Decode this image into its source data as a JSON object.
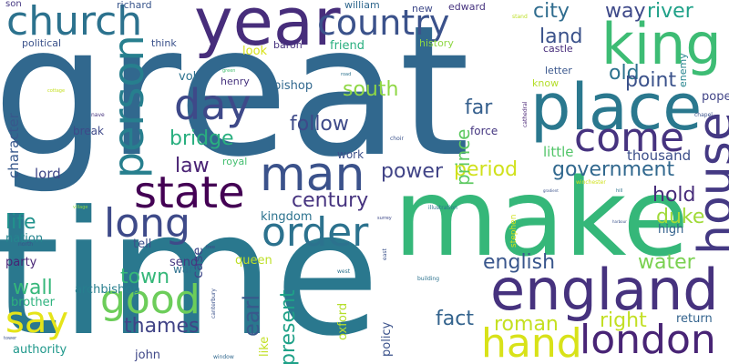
{
  "words": [
    {
      "text": "great",
      "color": "#31688e"
    },
    {
      "text": "time",
      "color": "#2a788e"
    },
    {
      "text": "make",
      "color": "#35b779"
    },
    {
      "text": "england",
      "color": "#46327e"
    },
    {
      "text": "year",
      "color": "#472d7b"
    },
    {
      "text": "king",
      "color": "#3dbc74"
    },
    {
      "text": "church",
      "color": "#2c728e"
    },
    {
      "text": "country",
      "color": "#3b528b"
    },
    {
      "text": "place",
      "color": "#2a788e"
    },
    {
      "text": "house",
      "color": "#443983"
    },
    {
      "text": "man",
      "color": "#3b528b"
    },
    {
      "text": "day",
      "color": "#3e4989"
    },
    {
      "text": "come",
      "color": "#46337f"
    },
    {
      "text": "person",
      "color": "#277f8e"
    },
    {
      "text": "state",
      "color": "#440154"
    },
    {
      "text": "long",
      "color": "#3e4a89"
    },
    {
      "text": "order",
      "color": "#2c728e"
    },
    {
      "text": "good",
      "color": "#6ccd5a"
    },
    {
      "text": "say",
      "color": "#e5e419"
    },
    {
      "text": "hand",
      "color": "#d8e219"
    },
    {
      "text": "london",
      "color": "#482475"
    },
    {
      "text": "city",
      "color": "#2f6c8e"
    },
    {
      "text": "way",
      "color": "#3e4989"
    },
    {
      "text": "river",
      "color": "#1fa188"
    },
    {
      "text": "land",
      "color": "#3b528b"
    },
    {
      "text": "old",
      "color": "#2c728e"
    },
    {
      "text": "point",
      "color": "#3b528b"
    },
    {
      "text": "far",
      "color": "#355f8d"
    },
    {
      "text": "south",
      "color": "#8fd744"
    },
    {
      "text": "follow",
      "color": "#3e4a89"
    },
    {
      "text": "bridge",
      "color": "#29af7f"
    },
    {
      "text": "law",
      "color": "#482173"
    },
    {
      "text": "power",
      "color": "#414487"
    },
    {
      "text": "government",
      "color": "#31688e"
    },
    {
      "text": "period",
      "color": "#d0e11c"
    },
    {
      "text": "century",
      "color": "#46337f"
    },
    {
      "text": "hold",
      "color": "#472c7a"
    },
    {
      "text": "duke",
      "color": "#a0da39"
    },
    {
      "text": "kingdom",
      "color": "#2c728e"
    },
    {
      "text": "life",
      "color": "#20928c"
    },
    {
      "text": "nation",
      "color": "#25858e"
    },
    {
      "text": "party",
      "color": "#482475"
    },
    {
      "text": "wall",
      "color": "#35b779"
    },
    {
      "text": "town",
      "color": "#35b779"
    },
    {
      "text": "earl",
      "color": "#38598c"
    },
    {
      "text": "english",
      "color": "#39568c"
    },
    {
      "text": "water",
      "color": "#7ad151"
    },
    {
      "text": "fact",
      "color": "#33638d"
    },
    {
      "text": "roman",
      "color": "#c5e021"
    },
    {
      "text": "right",
      "color": "#c2df23"
    },
    {
      "text": "thames",
      "color": "#414487"
    },
    {
      "text": "present",
      "color": "#1fa188"
    },
    {
      "text": "lord",
      "color": "#3f4788"
    },
    {
      "text": "character",
      "color": "#38588c"
    },
    {
      "text": "prince",
      "color": "#5ec962"
    },
    {
      "text": "thousand",
      "color": "#3c4f8a"
    },
    {
      "text": "little",
      "color": "#52c569"
    },
    {
      "text": "pope",
      "color": "#414487"
    },
    {
      "text": "return",
      "color": "#33638d"
    },
    {
      "text": "high",
      "color": "#33628d"
    },
    {
      "text": "case",
      "color": "#3f4889"
    },
    {
      "text": "queen",
      "color": "#bddf26"
    },
    {
      "text": "archbishop",
      "color": "#277f8e"
    },
    {
      "text": "send",
      "color": "#453781"
    },
    {
      "text": "war",
      "color": "#2d708e"
    },
    {
      "text": "tell",
      "color": "#3c4f8a"
    },
    {
      "text": "brother",
      "color": "#2db27d"
    },
    {
      "text": "authority",
      "color": "#1f988b"
    },
    {
      "text": "john",
      "color": "#3f4788"
    },
    {
      "text": "policy",
      "color": "#3b528b"
    },
    {
      "text": "oxford",
      "color": "#b5de2b"
    },
    {
      "text": "like",
      "color": "#c2df23"
    },
    {
      "text": "son",
      "color": "#453882"
    },
    {
      "text": "richard",
      "color": "#39568c"
    },
    {
      "text": "william",
      "color": "#31688e"
    },
    {
      "text": "new",
      "color": "#3e4989"
    },
    {
      "text": "edward",
      "color": "#46337f"
    },
    {
      "text": "stand",
      "color": "#bddf26"
    },
    {
      "text": "political",
      "color": "#3b528b"
    },
    {
      "text": "think",
      "color": "#3b528b"
    },
    {
      "text": "baron",
      "color": "#46327e"
    },
    {
      "text": "friend",
      "color": "#29af7f"
    },
    {
      "text": "history",
      "color": "#8fd744"
    },
    {
      "text": "castle",
      "color": "#472d7b"
    },
    {
      "text": "enemy",
      "color": "#25848e"
    },
    {
      "text": "letter",
      "color": "#39568c"
    },
    {
      "text": "know",
      "color": "#b5de2b"
    },
    {
      "text": "look",
      "color": "#d8e219"
    },
    {
      "text": "vol",
      "color": "#2c728e"
    },
    {
      "text": "henry",
      "color": "#46327e"
    },
    {
      "text": "bishop",
      "color": "#31688e"
    },
    {
      "text": "break",
      "color": "#3e4989"
    },
    {
      "text": "royal",
      "color": "#44bf70"
    },
    {
      "text": "work",
      "color": "#3c4f8a"
    },
    {
      "text": "force",
      "color": "#453781"
    },
    {
      "text": "green",
      "color": "#44bf70"
    },
    {
      "text": "road",
      "color": "#2c728e"
    },
    {
      "text": "cottage",
      "color": "#c5e021"
    },
    {
      "text": "nave",
      "color": "#46327e"
    },
    {
      "text": "choir",
      "color": "#3b528b"
    },
    {
      "text": "cathedral",
      "color": "#482475"
    },
    {
      "text": "chapel",
      "color": "#3b528b"
    },
    {
      "text": "village",
      "color": "#8fd744"
    },
    {
      "text": "north",
      "color": "#3b528b"
    },
    {
      "text": "tree",
      "color": "#3f4788"
    },
    {
      "text": "surrey",
      "color": "#3e4989"
    },
    {
      "text": "illustration",
      "color": "#2c728e"
    },
    {
      "text": "stephen",
      "color": "#d0e11c"
    },
    {
      "text": "winchester",
      "color": "#d0e11c"
    },
    {
      "text": "hill",
      "color": "#2c728e"
    },
    {
      "text": "gradient",
      "color": "#3b528b"
    },
    {
      "text": "harbour",
      "color": "#3b528b"
    },
    {
      "text": "canterbury",
      "color": "#3b528b"
    },
    {
      "text": "west",
      "color": "#2c728e"
    },
    {
      "text": "east",
      "color": "#3b528b"
    },
    {
      "text": "building",
      "color": "#2c728e"
    },
    {
      "text": "tower",
      "color": "#3b528b"
    },
    {
      "text": "window",
      "color": "#31688e"
    }
  ]
}
